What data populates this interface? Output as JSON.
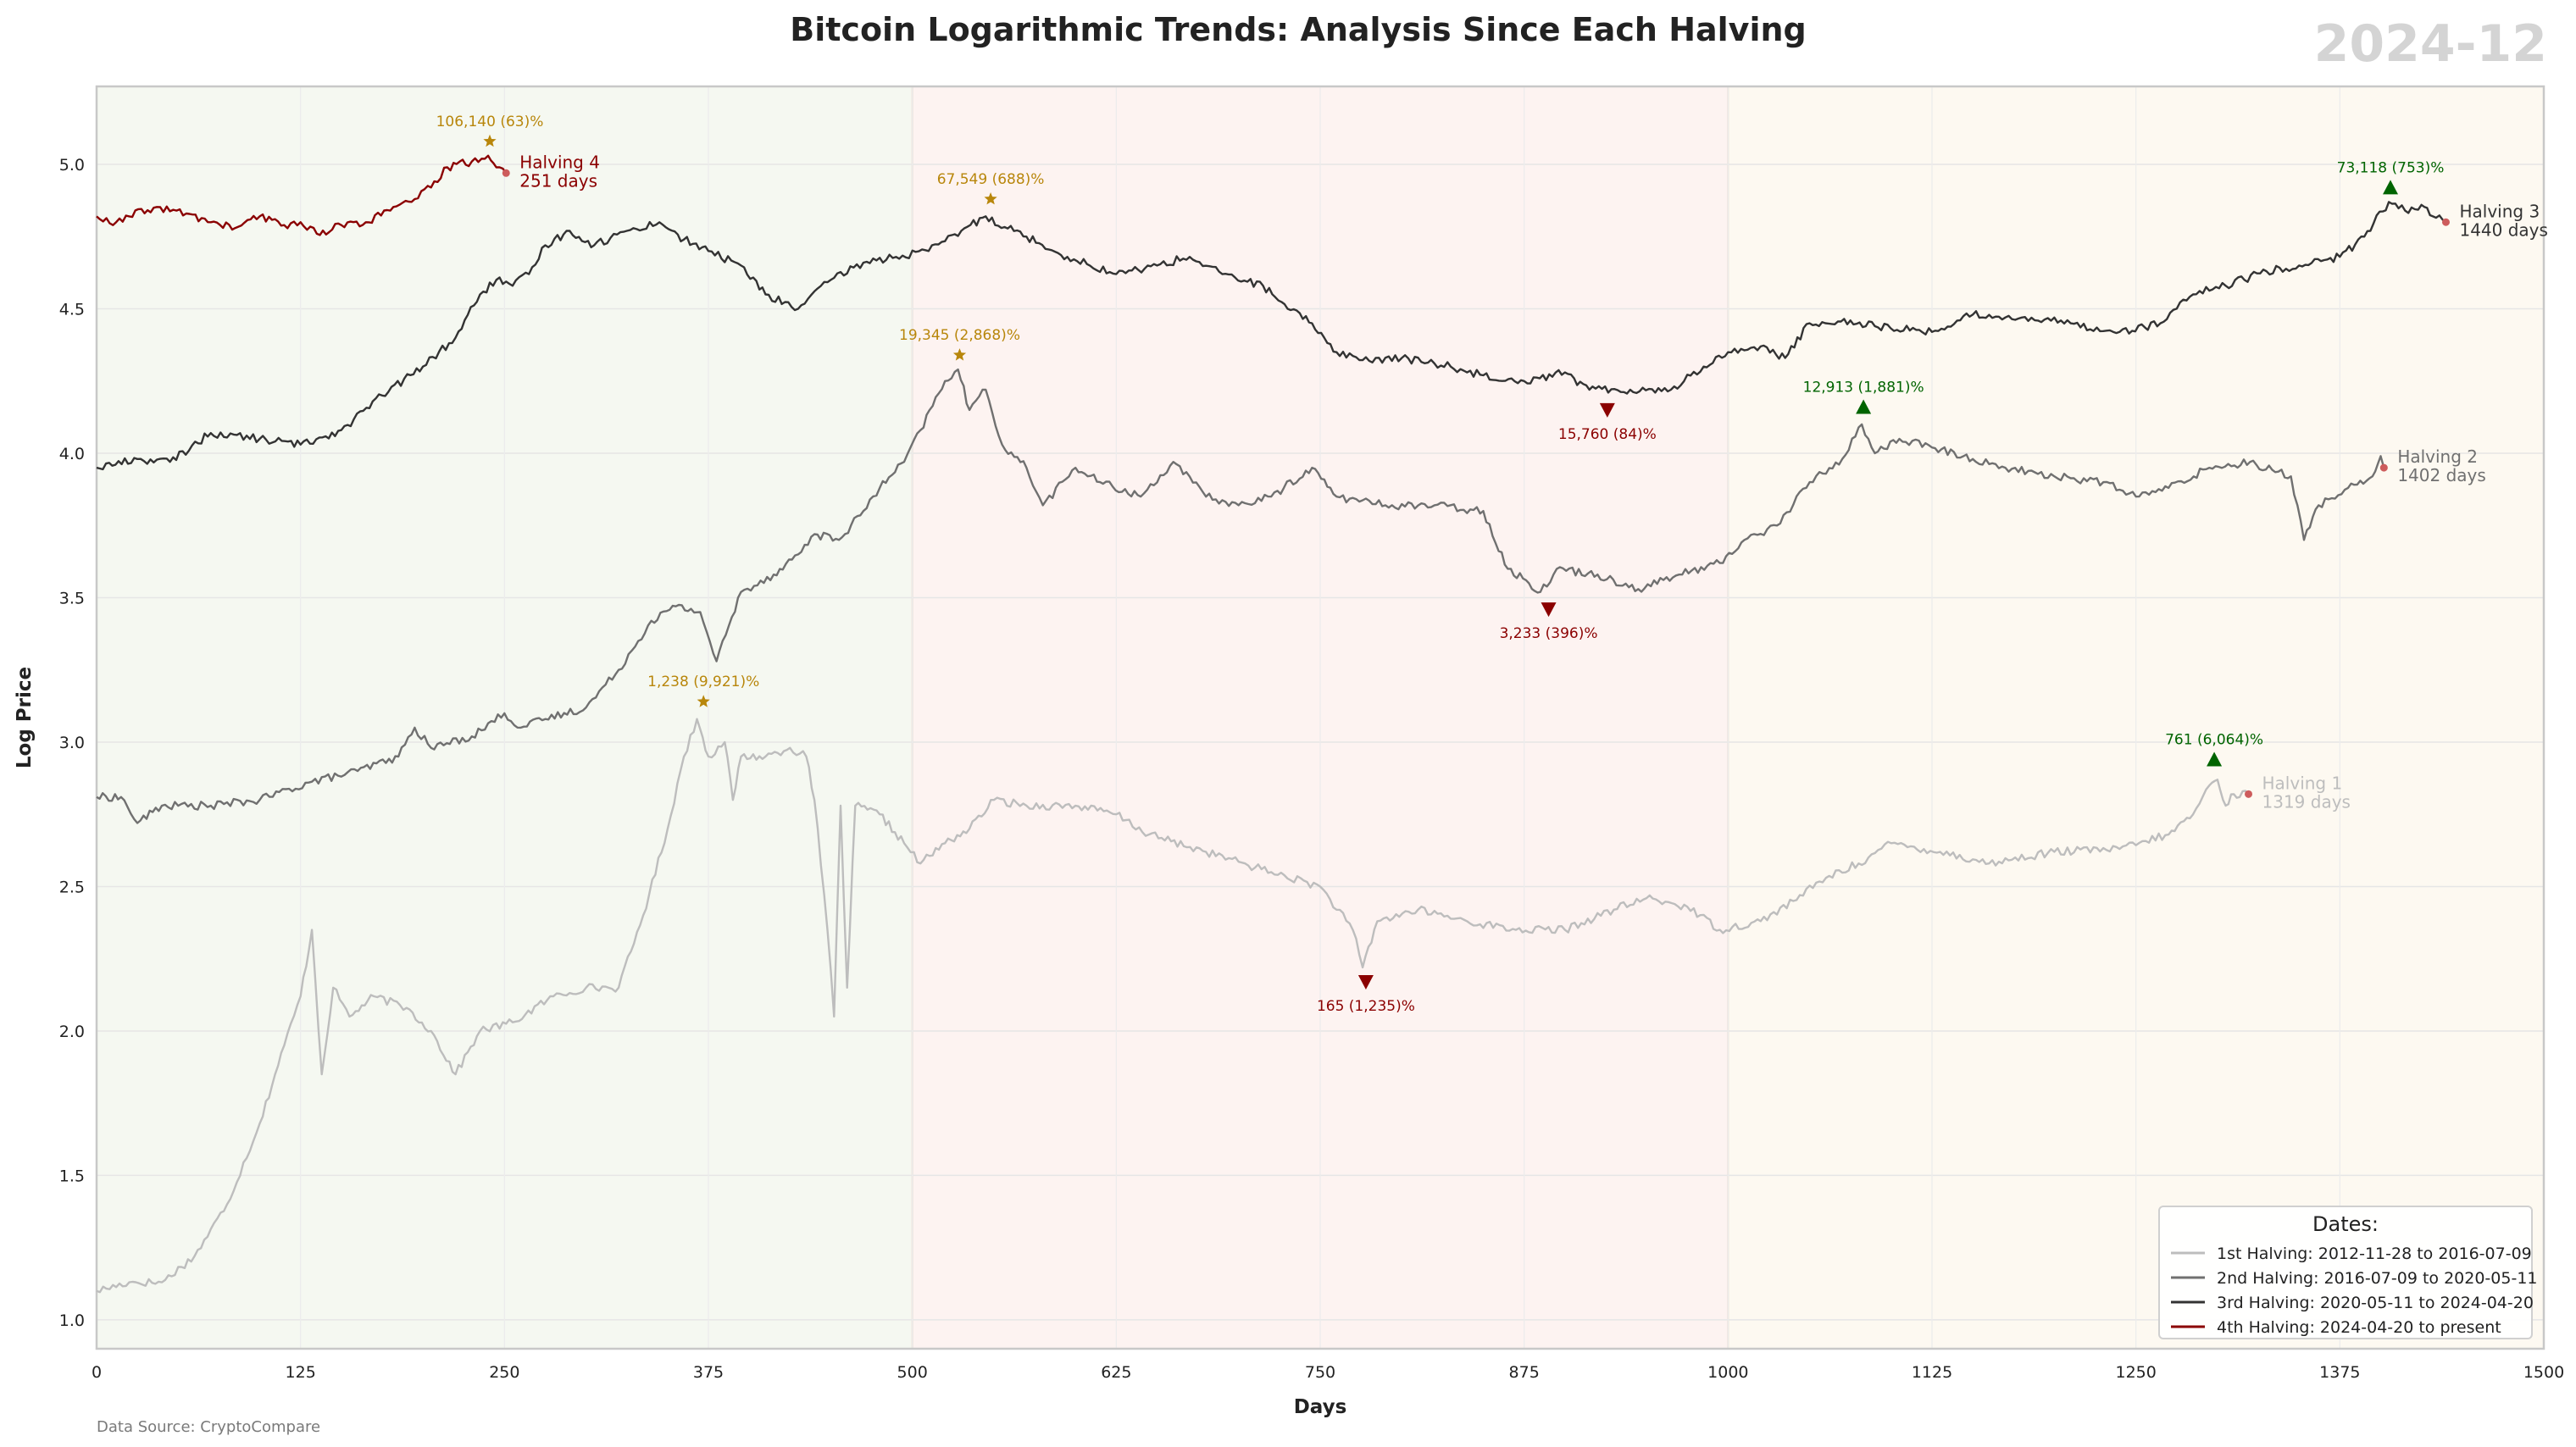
{
  "page": {
    "title": "Bitcoin Logarithmic Trends: Analysis Since Each Halving",
    "period_label": "2024-12",
    "source": "Data Source: CryptoCompare"
  },
  "chart_data": {
    "type": "line",
    "title": "Bitcoin Logarithmic Trends: Analysis Since Each Halving",
    "xlabel": "Days",
    "ylabel": "Log Price",
    "xlim": [
      0,
      1500
    ],
    "ylim": [
      0.9,
      5.27
    ],
    "x_ticks": [
      0,
      125,
      250,
      375,
      500,
      625,
      750,
      875,
      1000,
      1125,
      1250,
      1375,
      1500
    ],
    "y_ticks": [
      1.0,
      1.5,
      2.0,
      2.5,
      3.0,
      3.5,
      4.0,
      4.5,
      5.0
    ],
    "grid": true,
    "legend_position": "bottom-right",
    "legend_title": "Dates:",
    "background_bands": [
      {
        "from": 0,
        "to": 500,
        "color": "#f5f8f1"
      },
      {
        "from": 500,
        "to": 1000,
        "color": "#fdf3f1"
      },
      {
        "from": 1000,
        "to": 1500,
        "color": "#fdf9f1"
      }
    ],
    "series": [
      {
        "name": "1st Halving: 2012-11-28 to 2016-07-09",
        "color": "#bdbdbd",
        "end_label": [
          "Halving 1",
          "1319 days"
        ],
        "points": [
          [
            0,
            1.1
          ],
          [
            20,
            1.13
          ],
          [
            40,
            1.13
          ],
          [
            60,
            1.22
          ],
          [
            80,
            1.4
          ],
          [
            100,
            1.68
          ],
          [
            115,
            1.95
          ],
          [
            125,
            2.12
          ],
          [
            132,
            2.35
          ],
          [
            138,
            1.85
          ],
          [
            145,
            2.15
          ],
          [
            155,
            2.05
          ],
          [
            170,
            2.12
          ],
          [
            190,
            2.08
          ],
          [
            205,
            2.0
          ],
          [
            220,
            1.85
          ],
          [
            235,
            2.0
          ],
          [
            255,
            2.03
          ],
          [
            280,
            2.12
          ],
          [
            300,
            2.15
          ],
          [
            320,
            2.15
          ],
          [
            335,
            2.4
          ],
          [
            350,
            2.7
          ],
          [
            360,
            2.95
          ],
          [
            368,
            3.08
          ],
          [
            375,
            2.95
          ],
          [
            385,
            3.0
          ],
          [
            390,
            2.8
          ],
          [
            395,
            2.95
          ],
          [
            410,
            2.95
          ],
          [
            425,
            2.98
          ],
          [
            435,
            2.95
          ],
          [
            440,
            2.8
          ],
          [
            448,
            2.35
          ],
          [
            452,
            2.05
          ],
          [
            456,
            2.78
          ],
          [
            460,
            2.15
          ],
          [
            465,
            2.78
          ],
          [
            480,
            2.75
          ],
          [
            495,
            2.65
          ],
          [
            505,
            2.58
          ],
          [
            520,
            2.65
          ],
          [
            535,
            2.7
          ],
          [
            550,
            2.8
          ],
          [
            570,
            2.78
          ],
          [
            600,
            2.78
          ],
          [
            625,
            2.75
          ],
          [
            645,
            2.68
          ],
          [
            680,
            2.62
          ],
          [
            720,
            2.55
          ],
          [
            750,
            2.5
          ],
          [
            770,
            2.35
          ],
          [
            776,
            2.22
          ],
          [
            785,
            2.38
          ],
          [
            810,
            2.42
          ],
          [
            840,
            2.38
          ],
          [
            870,
            2.35
          ],
          [
            900,
            2.35
          ],
          [
            930,
            2.42
          ],
          [
            950,
            2.46
          ],
          [
            975,
            2.43
          ],
          [
            995,
            2.35
          ],
          [
            1020,
            2.38
          ],
          [
            1040,
            2.45
          ],
          [
            1060,
            2.53
          ],
          [
            1080,
            2.58
          ],
          [
            1100,
            2.65
          ],
          [
            1130,
            2.62
          ],
          [
            1160,
            2.58
          ],
          [
            1200,
            2.62
          ],
          [
            1240,
            2.63
          ],
          [
            1270,
            2.68
          ],
          [
            1285,
            2.75
          ],
          [
            1295,
            2.85
          ],
          [
            1300,
            2.87
          ],
          [
            1305,
            2.78
          ],
          [
            1310,
            2.82
          ],
          [
            1319,
            2.82
          ]
        ]
      },
      {
        "name": "2nd Halving: 2016-07-09 to 2020-05-11",
        "color": "#707070",
        "end_label": [
          "Halving 2",
          "1402 days"
        ],
        "points": [
          [
            0,
            2.81
          ],
          [
            15,
            2.81
          ],
          [
            25,
            2.72
          ],
          [
            40,
            2.78
          ],
          [
            70,
            2.78
          ],
          [
            100,
            2.8
          ],
          [
            130,
            2.86
          ],
          [
            160,
            2.9
          ],
          [
            185,
            2.95
          ],
          [
            195,
            3.05
          ],
          [
            205,
            2.98
          ],
          [
            230,
            3.02
          ],
          [
            250,
            3.1
          ],
          [
            260,
            3.05
          ],
          [
            275,
            3.08
          ],
          [
            300,
            3.12
          ],
          [
            320,
            3.25
          ],
          [
            340,
            3.42
          ],
          [
            355,
            3.47
          ],
          [
            370,
            3.45
          ],
          [
            380,
            3.28
          ],
          [
            395,
            3.52
          ],
          [
            415,
            3.58
          ],
          [
            430,
            3.65
          ],
          [
            440,
            3.72
          ],
          [
            455,
            3.7
          ],
          [
            470,
            3.8
          ],
          [
            480,
            3.88
          ],
          [
            495,
            3.97
          ],
          [
            505,
            4.08
          ],
          [
            520,
            4.25
          ],
          [
            528,
            4.29
          ],
          [
            535,
            4.15
          ],
          [
            545,
            4.22
          ],
          [
            555,
            4.03
          ],
          [
            570,
            3.95
          ],
          [
            580,
            3.82
          ],
          [
            600,
            3.95
          ],
          [
            615,
            3.9
          ],
          [
            640,
            3.85
          ],
          [
            660,
            3.97
          ],
          [
            680,
            3.85
          ],
          [
            700,
            3.82
          ],
          [
            720,
            3.85
          ],
          [
            745,
            3.95
          ],
          [
            760,
            3.85
          ],
          [
            790,
            3.82
          ],
          [
            820,
            3.82
          ],
          [
            850,
            3.8
          ],
          [
            865,
            3.6
          ],
          [
            878,
            3.55
          ],
          [
            885,
            3.52
          ],
          [
            895,
            3.6
          ],
          [
            920,
            3.58
          ],
          [
            945,
            3.53
          ],
          [
            970,
            3.58
          ],
          [
            995,
            3.62
          ],
          [
            1010,
            3.7
          ],
          [
            1030,
            3.75
          ],
          [
            1050,
            3.9
          ],
          [
            1070,
            3.98
          ],
          [
            1082,
            4.1
          ],
          [
            1090,
            4.0
          ],
          [
            1105,
            4.05
          ],
          [
            1125,
            4.02
          ],
          [
            1150,
            3.98
          ],
          [
            1170,
            3.95
          ],
          [
            1200,
            3.92
          ],
          [
            1230,
            3.9
          ],
          [
            1250,
            3.85
          ],
          [
            1270,
            3.88
          ],
          [
            1295,
            3.95
          ],
          [
            1320,
            3.97
          ],
          [
            1345,
            3.92
          ],
          [
            1353,
            3.7
          ],
          [
            1362,
            3.82
          ],
          [
            1380,
            3.88
          ],
          [
            1395,
            3.92
          ],
          [
            1400,
            3.99
          ],
          [
            1402,
            3.95
          ]
        ]
      },
      {
        "name": "3rd Halving: 2020-05-11 to 2024-04-20",
        "color": "#333333",
        "end_label": [
          "Halving 3",
          "1440 days"
        ],
        "points": [
          [
            0,
            3.95
          ],
          [
            25,
            3.98
          ],
          [
            45,
            3.97
          ],
          [
            70,
            4.07
          ],
          [
            100,
            4.05
          ],
          [
            125,
            4.03
          ],
          [
            150,
            4.08
          ],
          [
            175,
            4.2
          ],
          [
            200,
            4.3
          ],
          [
            220,
            4.4
          ],
          [
            235,
            4.55
          ],
          [
            245,
            4.6
          ],
          [
            255,
            4.58
          ],
          [
            265,
            4.62
          ],
          [
            275,
            4.72
          ],
          [
            290,
            4.77
          ],
          [
            305,
            4.72
          ],
          [
            325,
            4.77
          ],
          [
            345,
            4.8
          ],
          [
            360,
            4.74
          ],
          [
            375,
            4.7
          ],
          [
            395,
            4.65
          ],
          [
            410,
            4.55
          ],
          [
            430,
            4.5
          ],
          [
            450,
            4.6
          ],
          [
            470,
            4.66
          ],
          [
            490,
            4.68
          ],
          [
            510,
            4.7
          ],
          [
            530,
            4.77
          ],
          [
            545,
            4.82
          ],
          [
            570,
            4.75
          ],
          [
            595,
            4.68
          ],
          [
            625,
            4.62
          ],
          [
            650,
            4.65
          ],
          [
            670,
            4.68
          ],
          [
            690,
            4.62
          ],
          [
            715,
            4.58
          ],
          [
            730,
            4.5
          ],
          [
            745,
            4.45
          ],
          [
            760,
            4.35
          ],
          [
            780,
            4.32
          ],
          [
            800,
            4.33
          ],
          [
            830,
            4.3
          ],
          [
            850,
            4.27
          ],
          [
            875,
            4.25
          ],
          [
            900,
            4.28
          ],
          [
            915,
            4.22
          ],
          [
            940,
            4.22
          ],
          [
            965,
            4.22
          ],
          [
            985,
            4.3
          ],
          [
            1000,
            4.35
          ],
          [
            1020,
            4.37
          ],
          [
            1035,
            4.33
          ],
          [
            1050,
            4.45
          ],
          [
            1075,
            4.46
          ],
          [
            1090,
            4.44
          ],
          [
            1125,
            4.42
          ],
          [
            1150,
            4.48
          ],
          [
            1180,
            4.47
          ],
          [
            1210,
            4.45
          ],
          [
            1240,
            4.42
          ],
          [
            1265,
            4.45
          ],
          [
            1285,
            4.55
          ],
          [
            1305,
            4.58
          ],
          [
            1330,
            4.63
          ],
          [
            1350,
            4.65
          ],
          [
            1375,
            4.68
          ],
          [
            1390,
            4.75
          ],
          [
            1405,
            4.87
          ],
          [
            1415,
            4.84
          ],
          [
            1425,
            4.86
          ],
          [
            1432,
            4.82
          ],
          [
            1440,
            4.8
          ]
        ]
      },
      {
        "name": "4th Halving: 2024-04-20 to present",
        "color": "#8b0000",
        "end_label": [
          "Halving 4",
          "251 days"
        ],
        "points": [
          [
            0,
            4.82
          ],
          [
            10,
            4.79
          ],
          [
            20,
            4.82
          ],
          [
            35,
            4.85
          ],
          [
            55,
            4.83
          ],
          [
            70,
            4.8
          ],
          [
            85,
            4.78
          ],
          [
            100,
            4.82
          ],
          [
            115,
            4.79
          ],
          [
            125,
            4.8
          ],
          [
            135,
            4.76
          ],
          [
            150,
            4.79
          ],
          [
            165,
            4.8
          ],
          [
            180,
            4.84
          ],
          [
            195,
            4.88
          ],
          [
            205,
            4.92
          ],
          [
            215,
            4.99
          ],
          [
            230,
            5.01
          ],
          [
            240,
            5.03
          ],
          [
            245,
            4.99
          ],
          [
            251,
            4.97
          ]
        ]
      }
    ],
    "annotations": [
      {
        "kind": "peak",
        "marker": "star",
        "color": "#b8860b",
        "x": 241,
        "y": 5.08,
        "text": "106,140 (63)%"
      },
      {
        "kind": "peak",
        "marker": "star",
        "color": "#b8860b",
        "x": 548,
        "y": 4.88,
        "text": "67,549 (688)%"
      },
      {
        "kind": "peak",
        "marker": "star",
        "color": "#b8860b",
        "x": 529,
        "y": 4.34,
        "text": "19,345 (2,868)%"
      },
      {
        "kind": "peak",
        "marker": "star",
        "color": "#b8860b",
        "x": 372,
        "y": 3.14,
        "text": "1,238 (9,921)%"
      },
      {
        "kind": "high",
        "marker": "triangle-up",
        "color": "#006400",
        "x": 1406,
        "y": 4.92,
        "text": "73,118 (753)%"
      },
      {
        "kind": "high",
        "marker": "triangle-up",
        "color": "#006400",
        "x": 1083,
        "y": 4.16,
        "text": "12,913 (1,881)%"
      },
      {
        "kind": "high",
        "marker": "triangle-up",
        "color": "#006400",
        "x": 1298,
        "y": 2.94,
        "text": "761 (6,064)%"
      },
      {
        "kind": "low",
        "marker": "triangle-down",
        "color": "#8b0000",
        "x": 926,
        "y": 4.15,
        "text": "15,760 (84)%"
      },
      {
        "kind": "low",
        "marker": "triangle-down",
        "color": "#8b0000",
        "x": 890,
        "y": 3.46,
        "text": "3,233 (396)%"
      },
      {
        "kind": "low",
        "marker": "triangle-down",
        "color": "#8b0000",
        "x": 778,
        "y": 2.17,
        "text": "165 (1,235)%"
      }
    ]
  }
}
